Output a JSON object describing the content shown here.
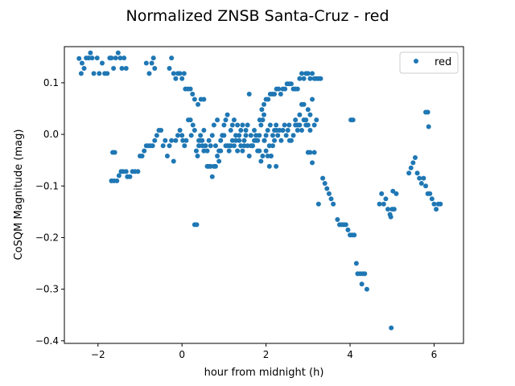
{
  "chart_data": {
    "type": "scatter",
    "title": "Normalized ZNSB Santa-Cruz - red",
    "xlabel": "hour from midnight (h)",
    "ylabel": "CoSQM Magnitude (mag)",
    "xlim": [
      -2.8,
      6.7
    ],
    "ylim": [
      -0.405,
      0.17
    ],
    "xticks": [
      -2,
      0,
      2,
      4,
      6
    ],
    "xtick_labels": [
      "−2",
      "0",
      "2",
      "4",
      "6"
    ],
    "yticks": [
      -0.4,
      -0.3,
      -0.2,
      -0.1,
      0.0,
      0.1
    ],
    "ytick_labels": [
      "−0.4",
      "−0.3",
      "−0.2",
      "−0.1",
      "0.0",
      "0.1"
    ],
    "grid": false,
    "legend": {
      "position": "top-right",
      "entries": [
        "red"
      ]
    },
    "series": [
      {
        "name": "red",
        "color": "#1f77b4",
        "points": [
          [
            -2.45,
            0.147
          ],
          [
            -2.4,
            0.118
          ],
          [
            -2.38,
            0.138
          ],
          [
            -2.33,
            0.128
          ],
          [
            -2.28,
            0.148
          ],
          [
            -2.22,
            0.148
          ],
          [
            -2.18,
            0.158
          ],
          [
            -2.14,
            0.148
          ],
          [
            -2.1,
            0.118
          ],
          [
            -2.02,
            0.148
          ],
          [
            -1.97,
            0.118
          ],
          [
            -1.9,
            0.138
          ],
          [
            -1.84,
            0.118
          ],
          [
            -1.78,
            0.118
          ],
          [
            -1.72,
            0.148
          ],
          [
            -1.68,
            0.148
          ],
          [
            -1.63,
            0.128
          ],
          [
            -1.58,
            0.148
          ],
          [
            -1.52,
            0.158
          ],
          [
            -1.47,
            0.148
          ],
          [
            -1.43,
            0.128
          ],
          [
            -1.38,
            0.148
          ],
          [
            -1.33,
            0.128
          ],
          [
            -0.85,
            0.138
          ],
          [
            -0.78,
            0.118
          ],
          [
            -0.72,
            0.138
          ],
          [
            -0.68,
            0.148
          ],
          [
            -0.65,
            0.128
          ],
          [
            -0.3,
            0.128
          ],
          [
            -0.25,
            0.148
          ],
          [
            -0.2,
            0.118
          ],
          [
            -0.15,
            0.108
          ],
          [
            -0.1,
            0.118
          ],
          [
            -0.05,
            0.118
          ],
          [
            0.0,
            0.108
          ],
          [
            0.05,
            0.118
          ],
          [
            0.08,
            0.088
          ],
          [
            0.14,
            0.088
          ],
          [
            0.2,
            0.088
          ],
          [
            0.25,
            0.078
          ],
          [
            0.3,
            0.068
          ],
          [
            0.38,
            0.058
          ],
          [
            0.45,
            0.068
          ],
          [
            0.52,
            0.068
          ],
          [
            -1.65,
            -0.035
          ],
          [
            -1.6,
            -0.035
          ],
          [
            -1.68,
            -0.09
          ],
          [
            -1.62,
            -0.09
          ],
          [
            -1.55,
            -0.09
          ],
          [
            -1.5,
            -0.08
          ],
          [
            -1.45,
            -0.072
          ],
          [
            -1.4,
            -0.072
          ],
          [
            -1.33,
            -0.072
          ],
          [
            -1.3,
            -0.082
          ],
          [
            -1.24,
            -0.082
          ],
          [
            -1.18,
            -0.072
          ],
          [
            -1.12,
            -0.072
          ],
          [
            -1.05,
            -0.072
          ],
          [
            -1.0,
            -0.042
          ],
          [
            -0.95,
            -0.042
          ],
          [
            -0.9,
            -0.032
          ],
          [
            -0.85,
            -0.022
          ],
          [
            -0.8,
            -0.022
          ],
          [
            -0.75,
            -0.022
          ],
          [
            -0.7,
            -0.022
          ],
          [
            -0.65,
            -0.012
          ],
          [
            -0.6,
            -0.002
          ],
          [
            -0.55,
            0.008
          ],
          [
            -0.5,
            0.008
          ],
          [
            -0.45,
            -0.022
          ],
          [
            -0.4,
            -0.012
          ],
          [
            -0.35,
            -0.042
          ],
          [
            -0.3,
            -0.022
          ],
          [
            -0.25,
            -0.012
          ],
          [
            -0.2,
            -0.052
          ],
          [
            -0.15,
            -0.012
          ],
          [
            -0.1,
            -0.002
          ],
          [
            -0.05,
            0.008
          ],
          [
            0.0,
            -0.002
          ],
          [
            0.02,
            -0.012
          ],
          [
            0.06,
            -0.022
          ],
          [
            0.1,
            -0.012
          ],
          [
            0.15,
            0.028
          ],
          [
            0.2,
            0.028
          ],
          [
            0.22,
            -0.002
          ],
          [
            0.26,
            0.018
          ],
          [
            0.3,
            0.008
          ],
          [
            0.34,
            -0.032
          ],
          [
            0.37,
            -0.042
          ],
          [
            0.4,
            -0.022
          ],
          [
            0.44,
            -0.002
          ],
          [
            0.48,
            -0.012
          ],
          [
            0.52,
            0.008
          ],
          [
            0.56,
            -0.022
          ],
          [
            0.6,
            -0.032
          ],
          [
            0.64,
            -0.012
          ],
          [
            0.68,
            -0.022
          ],
          [
            0.72,
            -0.002
          ],
          [
            0.76,
            0.018
          ],
          [
            0.8,
            -0.022
          ],
          [
            0.84,
            0.028
          ],
          [
            0.88,
            -0.052
          ],
          [
            0.92,
            -0.032
          ],
          [
            0.96,
            -0.002
          ],
          [
            1.0,
            0.018
          ],
          [
            1.04,
            0.028
          ],
          [
            1.08,
            0.038
          ],
          [
            1.12,
            -0.022
          ],
          [
            1.16,
            0.008
          ],
          [
            1.2,
            0.018
          ],
          [
            1.24,
            0.028
          ],
          [
            1.28,
            -0.012
          ],
          [
            1.32,
            0.018
          ],
          [
            1.36,
            -0.002
          ],
          [
            1.4,
            0.008
          ],
          [
            1.44,
            0.018
          ],
          [
            1.48,
            -0.012
          ],
          [
            1.52,
            0.008
          ],
          [
            1.56,
            0.018
          ],
          [
            1.6,
            0.078
          ],
          [
            1.64,
            -0.002
          ],
          [
            1.68,
            -0.022
          ],
          [
            1.72,
            0.008
          ],
          [
            1.76,
            -0.012
          ],
          [
            1.8,
            -0.032
          ],
          [
            1.84,
            -0.002
          ],
          [
            1.88,
            0.018
          ],
          [
            1.92,
            0.028
          ],
          [
            1.96,
            -0.012
          ],
          [
            2.0,
            -0.002
          ],
          [
            2.04,
            0.008
          ],
          [
            2.08,
            -0.022
          ],
          [
            2.12,
            -0.042
          ],
          [
            2.16,
            -0.002
          ],
          [
            2.2,
            0.008
          ],
          [
            2.24,
            0.018
          ],
          [
            2.28,
            -0.002
          ],
          [
            2.32,
            0.008
          ],
          [
            2.36,
            -0.012
          ],
          [
            2.4,
            0.008
          ],
          [
            2.44,
            0.018
          ],
          [
            2.48,
            -0.002
          ],
          [
            2.52,
            0.008
          ],
          [
            2.56,
            -0.012
          ],
          [
            0.6,
            -0.062
          ],
          [
            0.64,
            -0.062
          ],
          [
            0.68,
            -0.062
          ],
          [
            0.72,
            -0.082
          ],
          [
            0.76,
            -0.062
          ],
          [
            0.8,
            -0.062
          ],
          [
            0.84,
            -0.042
          ],
          [
            0.88,
            -0.032
          ],
          [
            0.92,
            -0.012
          ],
          [
            0.96,
            -0.002
          ],
          [
            1.0,
            -0.002
          ],
          [
            1.04,
            -0.022
          ],
          [
            1.08,
            -0.022
          ],
          [
            1.12,
            -0.032
          ],
          [
            1.16,
            -0.022
          ],
          [
            1.2,
            -0.012
          ],
          [
            1.24,
            -0.022
          ],
          [
            1.28,
            -0.002
          ],
          [
            1.32,
            -0.032
          ],
          [
            1.36,
            -0.012
          ],
          [
            1.4,
            -0.022
          ],
          [
            1.44,
            -0.032
          ],
          [
            1.48,
            -0.022
          ],
          [
            1.52,
            -0.002
          ],
          [
            1.56,
            -0.022
          ],
          [
            1.6,
            -0.042
          ],
          [
            1.64,
            -0.022
          ],
          [
            1.68,
            -0.022
          ],
          [
            1.72,
            -0.012
          ],
          [
            1.76,
            -0.002
          ],
          [
            1.8,
            -0.012
          ],
          [
            1.84,
            -0.032
          ],
          [
            1.88,
            -0.052
          ],
          [
            1.92,
            -0.042
          ],
          [
            1.96,
            -0.012
          ],
          [
            2.0,
            -0.032
          ],
          [
            2.04,
            -0.042
          ],
          [
            2.08,
            -0.062
          ],
          [
            2.12,
            -0.042
          ],
          [
            2.16,
            -0.022
          ],
          [
            2.2,
            -0.012
          ],
          [
            2.24,
            -0.062
          ],
          [
            0.55,
            -0.022
          ],
          [
            0.52,
            -0.032
          ],
          [
            0.48,
            -0.022
          ],
          [
            0.44,
            -0.012
          ],
          [
            0.4,
            -0.012
          ],
          [
            1.9,
            0.048
          ],
          [
            1.95,
            0.058
          ],
          [
            2.0,
            0.068
          ],
          [
            2.05,
            0.068
          ],
          [
            2.1,
            0.078
          ],
          [
            2.15,
            0.078
          ],
          [
            2.2,
            0.078
          ],
          [
            2.25,
            0.088
          ],
          [
            2.3,
            0.088
          ],
          [
            2.35,
            0.078
          ],
          [
            2.4,
            0.088
          ],
          [
            2.45,
            0.088
          ],
          [
            2.5,
            0.098
          ],
          [
            2.55,
            0.098
          ],
          [
            2.6,
            0.098
          ],
          [
            2.65,
            0.088
          ],
          [
            2.7,
            0.088
          ],
          [
            2.75,
            0.088
          ],
          [
            2.8,
            0.108
          ],
          [
            2.85,
            0.118
          ],
          [
            2.9,
            0.108
          ],
          [
            2.95,
            0.118
          ],
          [
            3.0,
            0.118
          ],
          [
            3.05,
            0.108
          ],
          [
            3.1,
            0.118
          ],
          [
            3.15,
            0.108
          ],
          [
            3.2,
            0.108
          ],
          [
            3.25,
            0.108
          ],
          [
            3.3,
            0.108
          ],
          [
            1.85,
            0.028
          ],
          [
            1.95,
            0.038
          ],
          [
            2.1,
            0.018
          ],
          [
            2.25,
            0.008
          ],
          [
            2.4,
            0.008
          ],
          [
            2.55,
            0.018
          ],
          [
            2.7,
            0.028
          ],
          [
            2.75,
            0.018
          ],
          [
            2.8,
            0.038
          ],
          [
            2.85,
            0.058
          ],
          [
            2.9,
            0.058
          ],
          [
            2.95,
            0.028
          ],
          [
            3.0,
            0.048
          ],
          [
            3.05,
            0.038
          ],
          [
            3.1,
            0.068
          ],
          [
            3.15,
            0.018
          ],
          [
            3.2,
            0.028
          ],
          [
            2.6,
            -0.012
          ],
          [
            2.65,
            -0.002
          ],
          [
            2.7,
            0.018
          ],
          [
            2.75,
            0.008
          ],
          [
            2.8,
            0.018
          ],
          [
            2.85,
            0.008
          ],
          [
            2.9,
            0.028
          ],
          [
            2.95,
            0.018
          ],
          [
            3.0,
            0.018
          ],
          [
            3.05,
            0.008
          ],
          [
            3.0,
            -0.035
          ],
          [
            3.05,
            -0.035
          ],
          [
            3.1,
            -0.055
          ],
          [
            3.15,
            -0.035
          ],
          [
            3.25,
            -0.135
          ],
          [
            3.35,
            -0.085
          ],
          [
            3.4,
            -0.095
          ],
          [
            3.45,
            -0.105
          ],
          [
            3.5,
            -0.115
          ],
          [
            3.55,
            -0.125
          ],
          [
            3.6,
            -0.135
          ],
          [
            3.7,
            -0.165
          ],
          [
            3.75,
            -0.175
          ],
          [
            3.8,
            -0.175
          ],
          [
            3.85,
            -0.175
          ],
          [
            3.9,
            -0.175
          ],
          [
            3.95,
            -0.185
          ],
          [
            4.0,
            -0.195
          ],
          [
            4.05,
            -0.195
          ],
          [
            4.1,
            -0.195
          ],
          [
            4.02,
            0.028
          ],
          [
            4.07,
            0.028
          ],
          [
            4.15,
            -0.25
          ],
          [
            4.18,
            -0.27
          ],
          [
            4.24,
            -0.27
          ],
          [
            4.3,
            -0.27
          ],
          [
            4.35,
            -0.27
          ],
          [
            4.28,
            -0.29
          ],
          [
            4.4,
            -0.3
          ],
          [
            4.7,
            -0.135
          ],
          [
            4.75,
            -0.115
          ],
          [
            4.8,
            -0.135
          ],
          [
            4.85,
            -0.125
          ],
          [
            4.9,
            -0.145
          ],
          [
            4.95,
            -0.155
          ],
          [
            4.97,
            -0.16
          ],
          [
            5.0,
            -0.145
          ],
          [
            5.05,
            -0.145
          ],
          [
            5.02,
            -0.11
          ],
          [
            5.1,
            -0.115
          ],
          [
            4.98,
            -0.375
          ],
          [
            5.4,
            -0.075
          ],
          [
            5.45,
            -0.065
          ],
          [
            5.5,
            -0.055
          ],
          [
            5.55,
            -0.045
          ],
          [
            5.6,
            -0.075
          ],
          [
            5.65,
            -0.085
          ],
          [
            5.7,
            -0.095
          ],
          [
            5.75,
            -0.085
          ],
          [
            5.8,
            0.043
          ],
          [
            5.85,
            0.043
          ],
          [
            5.87,
            0.015
          ],
          [
            5.8,
            -0.1
          ],
          [
            5.85,
            -0.115
          ],
          [
            5.9,
            -0.115
          ],
          [
            5.95,
            -0.125
          ],
          [
            6.0,
            -0.135
          ],
          [
            6.05,
            -0.145
          ],
          [
            6.1,
            -0.135
          ],
          [
            6.15,
            -0.135
          ],
          [
            0.3,
            -0.175
          ],
          [
            0.35,
            -0.175
          ]
        ]
      }
    ]
  }
}
